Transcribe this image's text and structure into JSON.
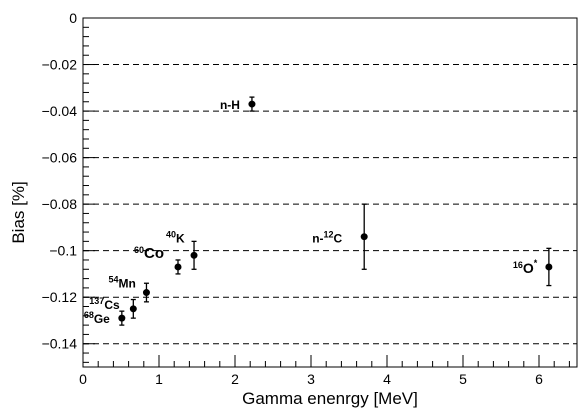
{
  "chart_data": {
    "type": "scatter",
    "xlabel": "Gamma enenrgy [MeV]",
    "ylabel": "Bias [%]",
    "xlim": [
      0,
      6.5
    ],
    "ylim": [
      -0.15,
      0
    ],
    "x_ticks": [
      0,
      1,
      2,
      3,
      4,
      5,
      6
    ],
    "y_ticks": [
      0,
      -0.02,
      -0.04,
      -0.06,
      -0.08,
      -0.1,
      -0.12,
      -0.14
    ],
    "y_tick_labels": [
      "0",
      "−0.02",
      "−0.04",
      "−0.06",
      "−0.08",
      "−0.1",
      "−0.12",
      "−0.14"
    ],
    "grid": "horizontal dashed at major y ticks",
    "points": [
      {
        "label_sup": "68",
        "label": "Ge",
        "x": 0.511,
        "y": -0.129,
        "err": 0.003
      },
      {
        "label_sup": "137",
        "label": "Cs",
        "x": 0.662,
        "y": -0.125,
        "err": 0.004
      },
      {
        "label_sup": "54",
        "label": "Mn",
        "x": 0.835,
        "y": -0.118,
        "err": 0.004
      },
      {
        "label_sup": "60",
        "label": "Co",
        "x": 1.25,
        "y": -0.107,
        "err": 0.003
      },
      {
        "label_sup": "40",
        "label": "K",
        "x": 1.461,
        "y": -0.102,
        "err": 0.006
      },
      {
        "label_sup": "",
        "label": "n-H",
        "x": 2.223,
        "y": -0.037,
        "err": 0.003
      },
      {
        "label_sup": "12",
        "label": "n-",
        "label_after": "C",
        "x": 3.7,
        "y": -0.094,
        "err": 0.014
      },
      {
        "label_sup": "16",
        "label": "O",
        "label_after_sup": "*",
        "x": 6.13,
        "y": -0.107,
        "err": 0.008
      }
    ]
  }
}
